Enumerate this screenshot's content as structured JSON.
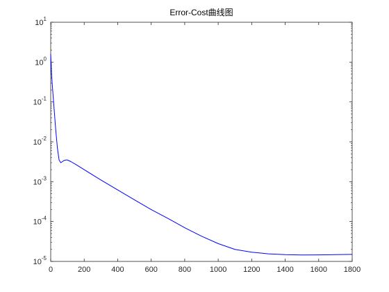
{
  "chart_data": {
    "type": "line",
    "title": "Error-Cost曲线图",
    "xlabel": "",
    "ylabel": "",
    "xlim": [
      0,
      1800
    ],
    "ylim": [
      1e-05,
      10
    ],
    "yscale": "log",
    "grid": false,
    "legend": "none",
    "x_ticks": [
      0,
      200,
      400,
      600,
      800,
      1000,
      1200,
      1400,
      1600,
      1800
    ],
    "y_ticks": [
      {
        "value": 1e-05,
        "exp": "-5"
      },
      {
        "value": 0.0001,
        "exp": "-4"
      },
      {
        "value": 0.001,
        "exp": "-3"
      },
      {
        "value": 0.01,
        "exp": "-2"
      },
      {
        "value": 0.1,
        "exp": "-1"
      },
      {
        "value": 1,
        "exp": "0"
      },
      {
        "value": 10,
        "exp": "1"
      }
    ],
    "y_tick_base": "10",
    "series": [
      {
        "color": "#0000ff",
        "x": [
          0,
          5,
          10,
          20,
          30,
          40,
          50,
          60,
          70,
          80,
          90,
          100,
          120,
          150,
          200,
          300,
          400,
          500,
          600,
          700,
          800,
          900,
          1000,
          1100,
          1200,
          1300,
          1400,
          1500,
          1600,
          1700,
          1800
        ],
        "y": [
          1.6,
          0.5,
          0.25,
          0.07,
          0.02,
          0.007,
          0.0035,
          0.003,
          0.0032,
          0.0034,
          0.0035,
          0.0035,
          0.0032,
          0.0027,
          0.002,
          0.0011,
          0.00062,
          0.00035,
          0.0002,
          0.00012,
          7e-05,
          4.3e-05,
          2.8e-05,
          2e-05,
          1.7e-05,
          1.55e-05,
          1.48e-05,
          1.45e-05,
          1.46e-05,
          1.48e-05,
          1.5e-05
        ]
      }
    ]
  }
}
